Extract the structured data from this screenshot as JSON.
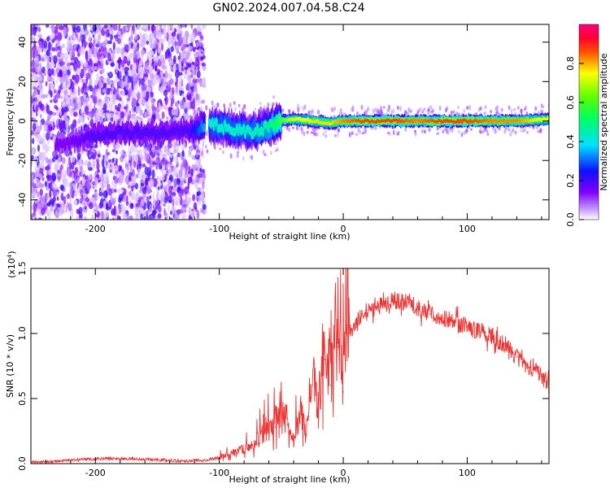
{
  "title": "GN02.2024.007.04.58.C24",
  "chart_data": [
    {
      "type": "heatmap",
      "xlabel": "Height of straight line (km)",
      "ylabel": "Frequency (Hz)",
      "xlim": [
        -252,
        166
      ],
      "ylim": [
        -50,
        49
      ],
      "x_ticks": [
        -200,
        -100,
        0,
        100
      ],
      "x_tick_labels": [
        "-200",
        "-100",
        "0",
        "100"
      ],
      "y_ticks": [
        -40,
        -20,
        0,
        20,
        40
      ],
      "y_tick_labels": [
        "-40",
        "-20",
        "0",
        "20",
        "40"
      ],
      "colorbar": {
        "label": "Normalized spectral amplitude",
        "range": [
          0,
          1
        ],
        "ticks": [
          0.0,
          0.2,
          0.4,
          0.6,
          0.8
        ],
        "tick_labels": [
          "0.0",
          "0.2",
          "0.4",
          "0.6",
          "0.8"
        ],
        "colormap": [
          "#ffffff",
          "#8000ff",
          "#0000ff",
          "#00ffff",
          "#00ff00",
          "#ffff00",
          "#ff0000",
          "#ff0080"
        ]
      },
      "scattered_noise_region_km": [
        -252,
        -112
      ],
      "signal_onset_km": -108,
      "ridge": {
        "x": [
          -225,
          -200,
          -175,
          -150,
          -125,
          -105,
          -90,
          -75,
          -60,
          -50,
          -40,
          -25,
          -10,
          0,
          20,
          40,
          60,
          80,
          100,
          120,
          140,
          166
        ],
        "freq": [
          -12,
          -7,
          -6,
          -6,
          -5,
          -2,
          -4,
          -6,
          -3,
          0,
          1,
          0,
          -1,
          0,
          0,
          0,
          0,
          0,
          0,
          0,
          0,
          1
        ],
        "peak_amplitude": [
          0.15,
          0.2,
          0.2,
          0.2,
          0.2,
          0.45,
          0.45,
          0.45,
          0.5,
          0.6,
          0.75,
          0.8,
          0.8,
          0.85,
          0.9,
          0.9,
          0.85,
          0.9,
          0.9,
          0.85,
          0.85,
          0.75
        ]
      },
      "grid": false
    },
    {
      "type": "line",
      "xlabel": "Height of straight line (km)",
      "ylabel": "SNR (10 * v/v)",
      "y_multiplier_label": "(x10",
      "y_multiplier_exp": "4",
      "y_multiplier_close": ")",
      "xlim": [
        -252,
        166
      ],
      "ylim": [
        0,
        1.5
      ],
      "x_ticks": [
        -200,
        -100,
        0,
        100
      ],
      "x_tick_labels": [
        "-200",
        "-100",
        "0",
        "100"
      ],
      "y_ticks": [
        0.0,
        0.5,
        1.0,
        1.5
      ],
      "y_tick_labels": [
        "0.0",
        "0.5",
        "1.0",
        "1.5"
      ],
      "series": [
        {
          "color": "#ee3333",
          "x": [
            -252,
            -230,
            -210,
            -190,
            -170,
            -150,
            -130,
            -110,
            -95,
            -85,
            -75,
            -65,
            -55,
            -45,
            -40,
            -35,
            -30,
            -25,
            -20,
            -15,
            -10,
            -5,
            0,
            5,
            10,
            20,
            30,
            40,
            50,
            60,
            70,
            80,
            90,
            100,
            110,
            120,
            130,
            140,
            150,
            160,
            166
          ],
          "y": [
            0.01,
            0.02,
            0.03,
            0.04,
            0.035,
            0.03,
            0.02,
            0.03,
            0.05,
            0.08,
            0.12,
            0.18,
            0.28,
            0.3,
            0.15,
            0.35,
            0.22,
            0.6,
            0.35,
            0.8,
            0.6,
            0.9,
            0.55,
            1.0,
            1.08,
            1.18,
            1.23,
            1.25,
            1.24,
            1.2,
            1.15,
            1.12,
            1.1,
            1.05,
            1.02,
            0.98,
            0.92,
            0.82,
            0.74,
            0.67,
            0.62
          ]
        }
      ],
      "grid": false
    }
  ]
}
